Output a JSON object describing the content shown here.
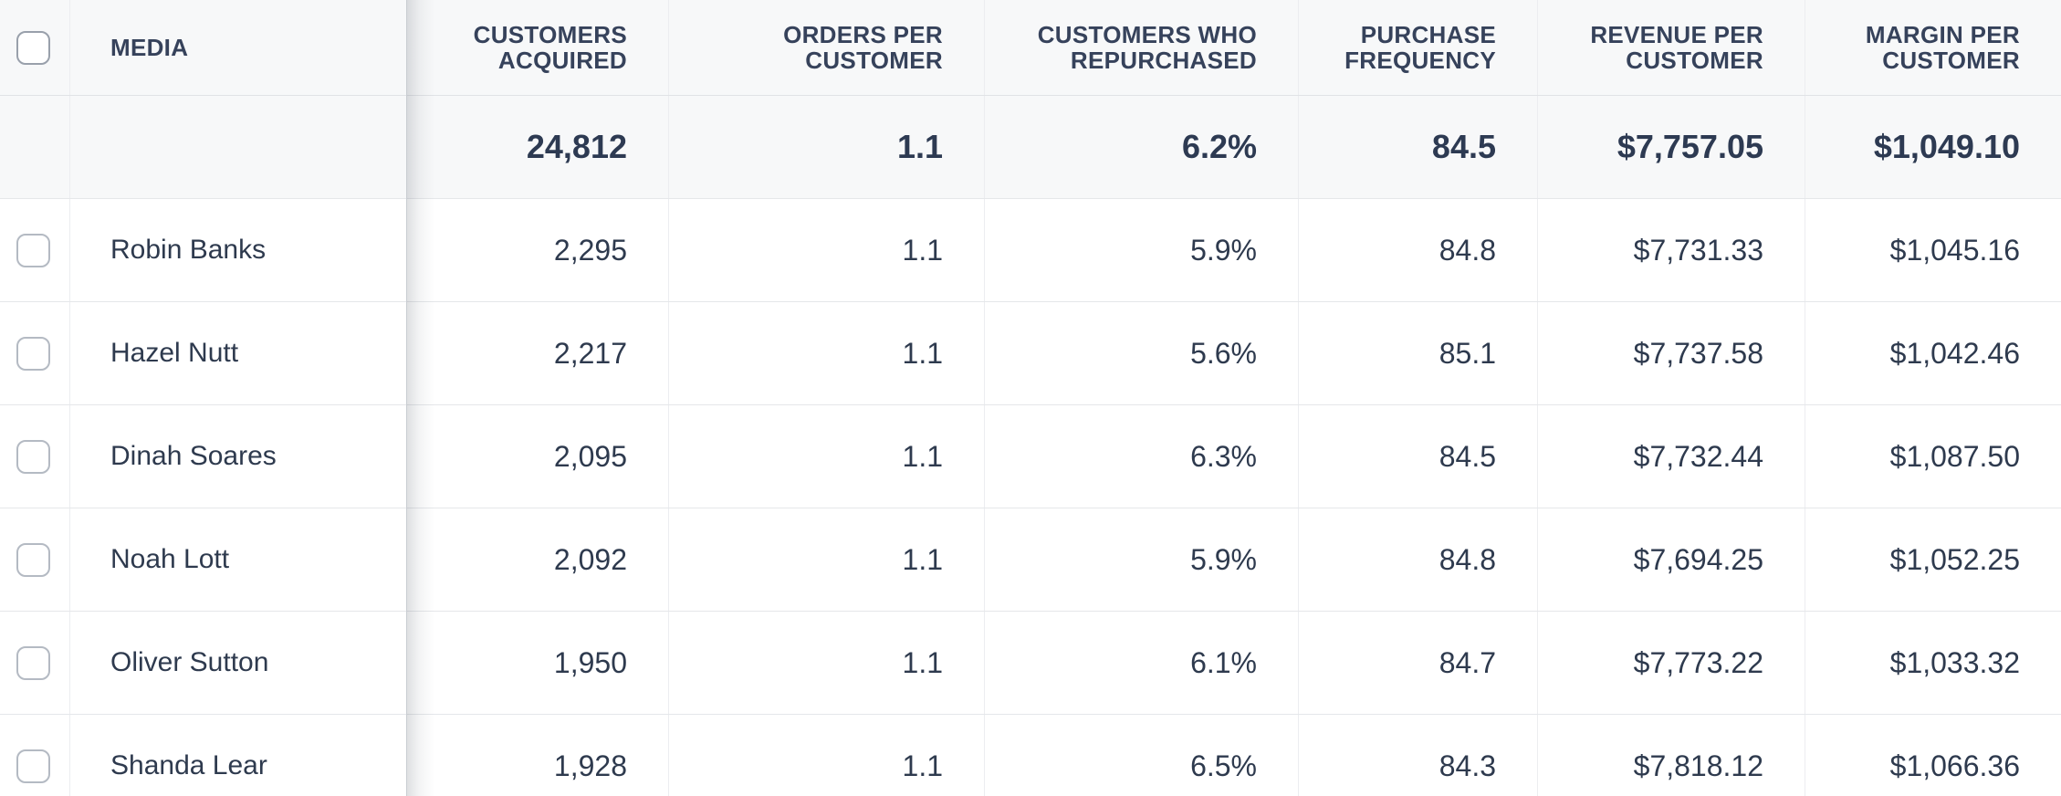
{
  "table": {
    "columns": [
      {
        "key": "media",
        "label": "MEDIA"
      },
      {
        "key": "customers_acquired",
        "label": "CUSTOMERS ACQUIRED"
      },
      {
        "key": "orders_per_customer",
        "label": "ORDERS PER CUSTOMER"
      },
      {
        "key": "customers_who_repurchased",
        "label": "CUSTOMERS WHO REPURCHASED"
      },
      {
        "key": "purchase_frequency",
        "label": "PURCHASE FREQUENCY"
      },
      {
        "key": "revenue_per_customer",
        "label": "REVENUE PER CUSTOMER"
      },
      {
        "key": "margin_per_customer",
        "label": "MARGIN PER CUSTOMER"
      }
    ],
    "totals": {
      "customers_acquired": "24,812",
      "orders_per_customer": "1.1",
      "customers_who_repurchased": "6.2%",
      "purchase_frequency": "84.5",
      "revenue_per_customer": "$7,757.05",
      "margin_per_customer": "$1,049.10"
    },
    "rows": [
      {
        "media": "Robin Banks",
        "customers_acquired": "2,295",
        "orders_per_customer": "1.1",
        "customers_who_repurchased": "5.9%",
        "purchase_frequency": "84.8",
        "revenue_per_customer": "$7,731.33",
        "margin_per_customer": "$1,045.16"
      },
      {
        "media": "Hazel Nutt",
        "customers_acquired": "2,217",
        "orders_per_customer": "1.1",
        "customers_who_repurchased": "5.6%",
        "purchase_frequency": "85.1",
        "revenue_per_customer": "$7,737.58",
        "margin_per_customer": "$1,042.46"
      },
      {
        "media": "Dinah Soares",
        "customers_acquired": "2,095",
        "orders_per_customer": "1.1",
        "customers_who_repurchased": "6.3%",
        "purchase_frequency": "84.5",
        "revenue_per_customer": "$7,732.44",
        "margin_per_customer": "$1,087.50"
      },
      {
        "media": "Noah Lott",
        "customers_acquired": "2,092",
        "orders_per_customer": "1.1",
        "customers_who_repurchased": "5.9%",
        "purchase_frequency": "84.8",
        "revenue_per_customer": "$7,694.25",
        "margin_per_customer": "$1,052.25"
      },
      {
        "media": "Oliver Sutton",
        "customers_acquired": "1,950",
        "orders_per_customer": "1.1",
        "customers_who_repurchased": "6.1%",
        "purchase_frequency": "84.7",
        "revenue_per_customer": "$7,773.22",
        "margin_per_customer": "$1,033.32"
      },
      {
        "media": "Shanda Lear",
        "customers_acquired": "1,928",
        "orders_per_customer": "1.1",
        "customers_who_repurchased": "6.5%",
        "purchase_frequency": "84.3",
        "revenue_per_customer": "$7,818.12",
        "margin_per_customer": "$1,066.36"
      }
    ],
    "colors": {
      "header_background": "#f7f8f9",
      "totals_background": "#f7f8f9",
      "row_background": "#ffffff",
      "header_text": "#36425b",
      "body_text": "#2e3a4e",
      "totals_text": "#2d3a52",
      "row_border": "#e5e7ea",
      "column_border": "#ecedf0",
      "frozen_edge": "#c9cdd2"
    }
  }
}
